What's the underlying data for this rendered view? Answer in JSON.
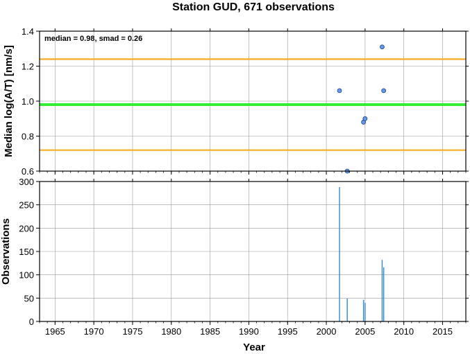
{
  "title": "Station GUD, 671 observations",
  "colors": {
    "median_line": "#33ee33",
    "smad_lines": "#ffaa22",
    "points": "#6699ee",
    "bars": "#3388dd",
    "grid": "#999999"
  },
  "chart_data": [
    {
      "type": "scatter",
      "ylabel": "Median log(A/T) [nm/s]",
      "xlim": [
        1963,
        2018
      ],
      "ylim": [
        0.6,
        1.4
      ],
      "yticks": [
        "0.6",
        "0.8",
        "1.0",
        "1.2",
        "1.4"
      ],
      "grid": true,
      "annotation": "median = 0.98, smad = 0.26",
      "median": 0.98,
      "smad_band": [
        0.72,
        1.24
      ],
      "points": [
        {
          "x": 2001.7,
          "y": 1.06
        },
        {
          "x": 2002.7,
          "y": 0.6
        },
        {
          "x": 2004.8,
          "y": 0.88
        },
        {
          "x": 2005.0,
          "y": 0.9
        },
        {
          "x": 2007.2,
          "y": 1.31
        },
        {
          "x": 2007.4,
          "y": 1.06
        }
      ]
    },
    {
      "type": "bar",
      "xlabel": "Year",
      "ylabel": "Observations",
      "xlim": [
        1963,
        2018
      ],
      "ylim": [
        0,
        300
      ],
      "yticks": [
        "0",
        "50",
        "100",
        "150",
        "200",
        "250",
        "300"
      ],
      "xticks": [
        "1965",
        "1970",
        "1975",
        "1980",
        "1985",
        "1990",
        "1995",
        "2000",
        "2005",
        "2010",
        "2015"
      ],
      "grid": true,
      "bars": [
        {
          "x": 2001.7,
          "value": 288
        },
        {
          "x": 2002.7,
          "value": 49
        },
        {
          "x": 2004.8,
          "value": 46
        },
        {
          "x": 2005.0,
          "value": 40
        },
        {
          "x": 2007.2,
          "value": 132
        },
        {
          "x": 2007.4,
          "value": 116
        }
      ]
    }
  ]
}
